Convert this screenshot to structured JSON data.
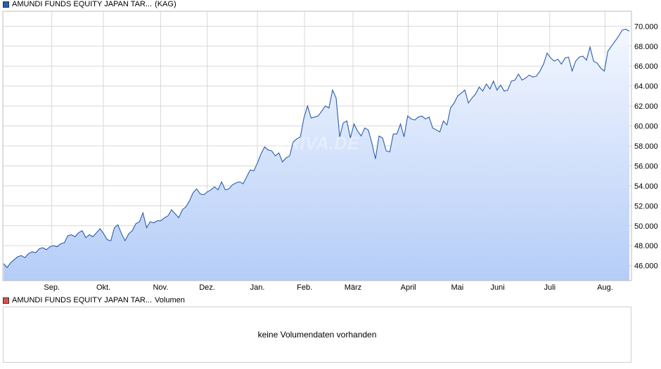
{
  "legend": {
    "price_label": "AMUNDI FUNDS EQUITY JAPAN TAR...",
    "price_suffix": "(KAG)",
    "volume_label": "AMUNDI FUNDS EQUITY JAPAN TAR...",
    "volume_suffix": "Volumen"
  },
  "colors": {
    "line": "#2a5db0",
    "fill_top": "#f3f7ff",
    "fill_bottom": "#b5cdf7",
    "grid": "#d8d8d8",
    "price_swatch": "#2a5db0",
    "volume_swatch": "#d9534f"
  },
  "watermark": "ARIVA.DE",
  "volume_panel": {
    "message": "keine Volumendaten vorhanden"
  },
  "chart_data": {
    "type": "area",
    "title": "",
    "xlabel": "",
    "ylabel": "",
    "ylim": [
      44.5,
      71.5
    ],
    "yticks": [
      "70.000",
      "68.000",
      "66.000",
      "64.000",
      "62.000",
      "60.000",
      "58.000",
      "56.000",
      "54.000",
      "52.000",
      "50.000",
      "48.000",
      "46.000"
    ],
    "ytick_values": [
      70,
      68,
      66,
      64,
      62,
      60,
      58,
      56,
      54,
      52,
      50,
      48,
      46
    ],
    "xticks": [
      "Sep.",
      "Okt.",
      "Nov.",
      "Dez.",
      "Jan.",
      "Feb.",
      "März",
      "April",
      "Mai",
      "Juni",
      "Juli",
      "Aug."
    ],
    "xtick_positions": [
      0.078,
      0.16,
      0.251,
      0.325,
      0.405,
      0.48,
      0.557,
      0.645,
      0.723,
      0.787,
      0.87,
      0.958
    ],
    "series": [
      {
        "values": [
          46.2,
          45.8,
          46.3,
          46.6,
          46.9,
          47.0,
          46.8,
          47.2,
          47.4,
          47.3,
          47.7,
          47.8,
          47.6,
          47.9,
          48.0,
          47.9,
          48.2,
          48.3,
          49.0,
          49.1,
          48.9,
          49.3,
          49.5,
          48.8,
          49.1,
          48.9,
          49.3,
          49.7,
          49.2,
          48.6,
          48.5,
          49.8,
          50.1,
          49.2,
          48.5,
          49.2,
          49.5,
          50.2,
          50.4,
          51.3,
          49.8,
          50.4,
          50.3,
          50.5,
          50.5,
          50.8,
          51.0,
          51.6,
          51.2,
          50.8,
          51.6,
          51.9,
          52.5,
          53.3,
          53.7,
          53.2,
          53.1,
          53.4,
          53.6,
          53.9,
          53.6,
          54.4,
          53.6,
          53.7,
          54.1,
          54.3,
          54.4,
          54.2,
          54.9,
          55.6,
          55.5,
          56.3,
          57.2,
          57.9,
          57.6,
          57.5,
          57.0,
          57.3,
          56.4,
          56.8,
          57.0,
          58.4,
          58.7,
          58.9,
          60.8,
          62.0,
          60.8,
          60.9,
          61.0,
          61.5,
          62.0,
          61.8,
          63.6,
          62.8,
          58.9,
          60.3,
          60.5,
          58.8,
          60.2,
          59.5,
          59.0,
          59.8,
          59.6,
          58.3,
          56.7,
          59.0,
          58.8,
          57.5,
          57.4,
          59.2,
          59.2,
          60.2,
          58.9,
          61.0,
          60.7,
          60.6,
          60.9,
          61.0,
          60.7,
          60.9,
          59.8,
          59.6,
          59.4,
          60.5,
          60.1,
          61.8,
          62.3,
          63.0,
          63.3,
          63.6,
          62.3,
          62.8,
          63.2,
          63.9,
          63.5,
          64.2,
          63.7,
          64.5,
          63.6,
          64.1,
          63.5,
          63.6,
          64.5,
          64.6,
          65.2,
          64.6,
          64.8,
          65.1,
          64.9,
          65.0,
          65.5,
          66.2,
          67.3,
          66.8,
          66.5,
          66.7,
          66.2,
          66.8,
          66.9,
          65.5,
          66.5,
          66.9,
          67.0,
          66.6,
          67.9,
          66.5,
          66.3,
          65.8,
          65.5,
          67.5,
          68.0,
          68.5,
          69.0,
          69.6,
          69.7,
          69.5
        ]
      }
    ]
  }
}
